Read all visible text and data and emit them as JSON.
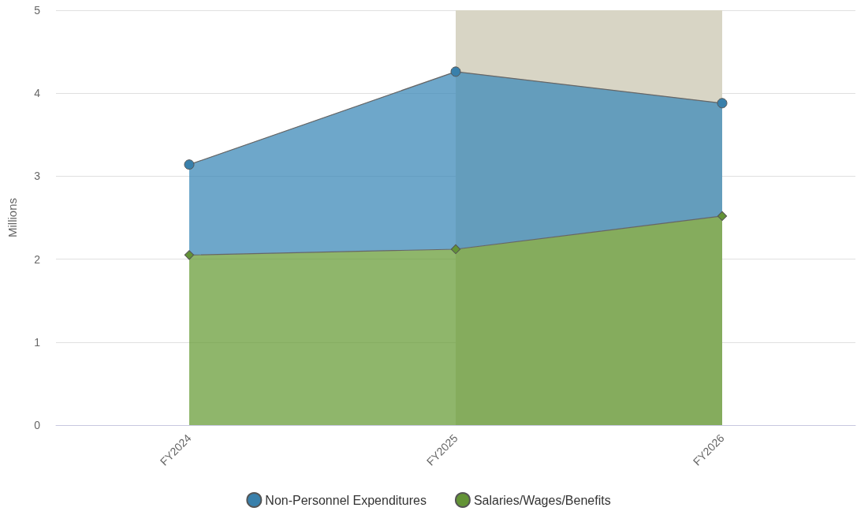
{
  "chart_data": {
    "type": "area",
    "ylabel": "Millions",
    "categories": [
      "FY2024",
      "FY2025",
      "FY2026"
    ],
    "stacked": true,
    "series": [
      {
        "name": "Salaries/Wages/Benefits",
        "color": "#6a9e3a",
        "marker": "diamond",
        "values": [
          2.05,
          2.12,
          2.52
        ]
      },
      {
        "name": "Non-Personnel Expenditures",
        "color": "#3d8ab8",
        "marker": "circle",
        "values": [
          1.09,
          2.14,
          1.36
        ]
      }
    ],
    "ylim": [
      0,
      5
    ],
    "yticks": [
      0,
      1,
      2,
      3,
      4,
      5
    ],
    "grid": "y",
    "legend": "bottom",
    "bands": [
      {
        "axis": "x",
        "from": "FY2025",
        "to": "FY2026",
        "color": "#d8d5c5"
      }
    ]
  }
}
